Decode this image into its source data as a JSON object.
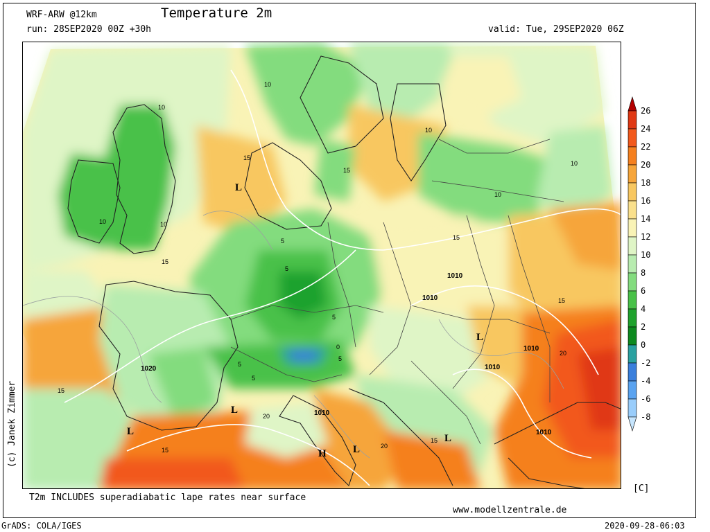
{
  "header": {
    "model": "WRF-ARW @12km",
    "title": "Temperature 2m",
    "run": "run: 28SEP2020 00Z +30h",
    "valid": "valid: Tue, 29SEP2020 06Z"
  },
  "footer": {
    "note": "T2m INCLUDES superadiabatic lape rates near surface",
    "website": "www.modellzentrale.de",
    "software": "GrADS: COLA/IGES",
    "timestamp": "2020-09-28-06:03",
    "author": "(c) Janek Zimmer"
  },
  "legend": {
    "unit": "[C]",
    "levels": [
      "26",
      "24",
      "22",
      "20",
      "18",
      "16",
      "14",
      "12",
      "10",
      "8",
      "6",
      "4",
      "2",
      "0",
      "-2",
      "-4",
      "-6",
      "-8"
    ],
    "colors": [
      "#b40000",
      "#e03814",
      "#f2591c",
      "#f5801f",
      "#f6a53a",
      "#f8c760",
      "#fae08c",
      "#f9f3b6",
      "#dff5c6",
      "#b8ecb0",
      "#83dc7e",
      "#48c148",
      "#1fa22d",
      "#0d8a1f",
      "#2aa1a0",
      "#3a7fdc",
      "#5aa3f0",
      "#99cdfb",
      "#c6e5fd"
    ]
  },
  "map": {
    "pressure_labels": [
      "1010",
      "1010",
      "1010",
      "1020",
      "1010",
      "1010",
      "1010"
    ],
    "pressure_centers": [
      "L",
      "L",
      "L",
      "L",
      "L",
      "L",
      "H"
    ],
    "contour_labels": [
      "10",
      "10",
      "10",
      "10",
      "10",
      "10",
      "10",
      "15",
      "15",
      "15",
      "15",
      "15",
      "15",
      "15",
      "15",
      "5",
      "5",
      "5",
      "5",
      "5",
      "5",
      "20",
      "20",
      "20",
      "0"
    ]
  }
}
